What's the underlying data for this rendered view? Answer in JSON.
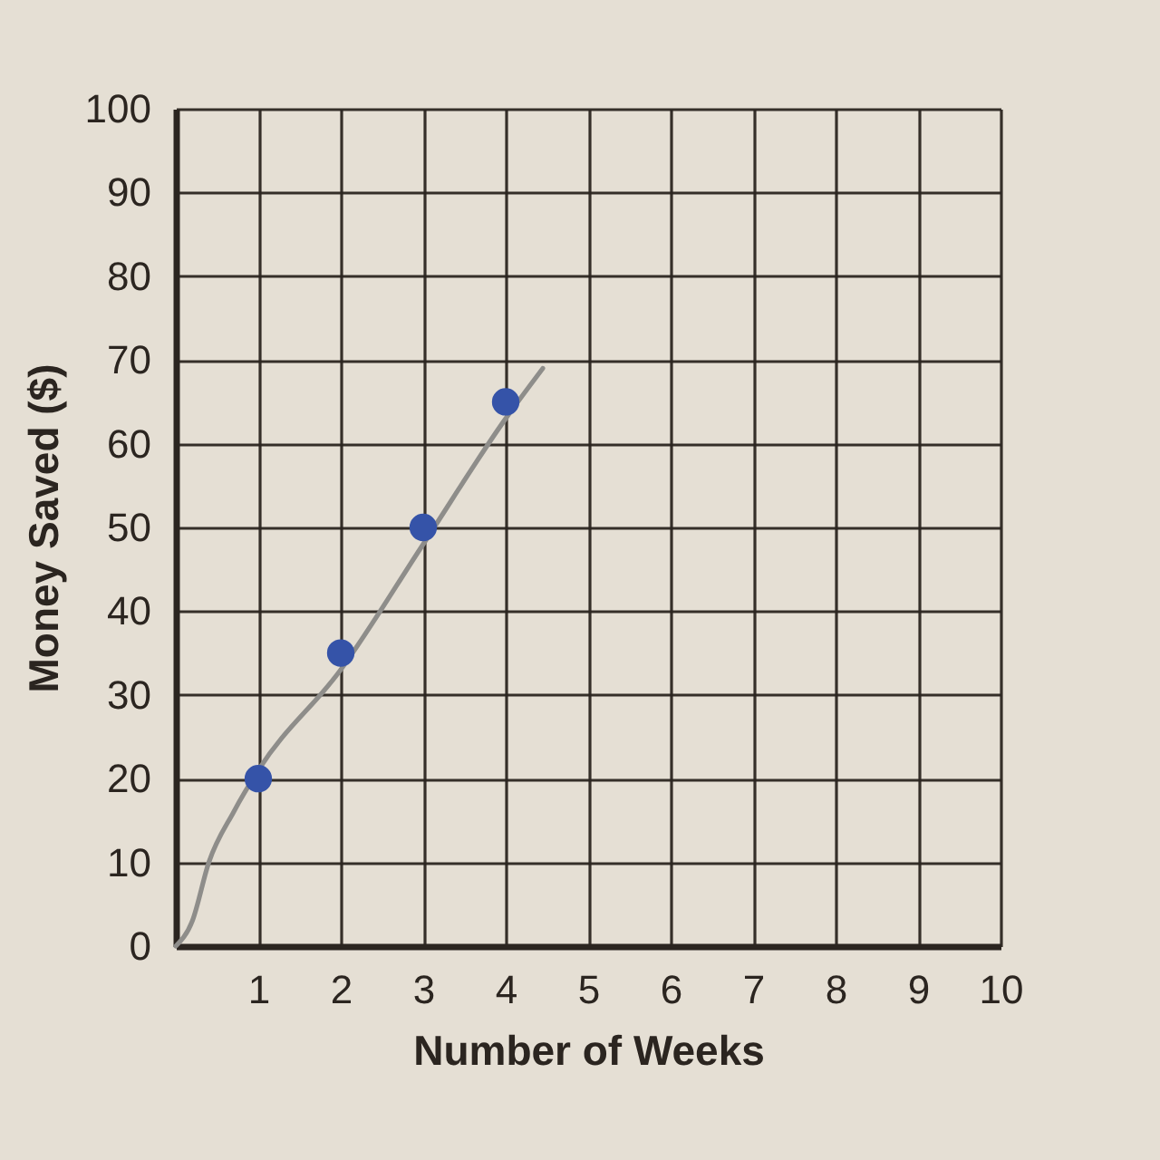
{
  "chart_data": {
    "type": "scatter",
    "xlabel": "Number of Weeks",
    "ylabel": "Money Saved ($)",
    "xlim": [
      0,
      10
    ],
    "ylim": [
      0,
      100
    ],
    "xticks": [
      1,
      2,
      3,
      4,
      5,
      6,
      7,
      8,
      9,
      10
    ],
    "yticks": [
      0,
      10,
      20,
      30,
      40,
      50,
      60,
      70,
      80,
      90,
      100
    ],
    "grid": true,
    "series": [
      {
        "marker": "circle",
        "color": "#3553a8",
        "x": [
          1,
          2,
          3,
          4
        ],
        "values": [
          20,
          35,
          50,
          65
        ]
      },
      {
        "type": "line",
        "color": "#8e8d8a",
        "x": [
          0,
          0.2,
          0.4,
          0.7,
          1,
          2,
          3,
          4,
          4.45
        ],
        "values": [
          0,
          3,
          10,
          16,
          21,
          33,
          48,
          63,
          69
        ]
      }
    ]
  }
}
